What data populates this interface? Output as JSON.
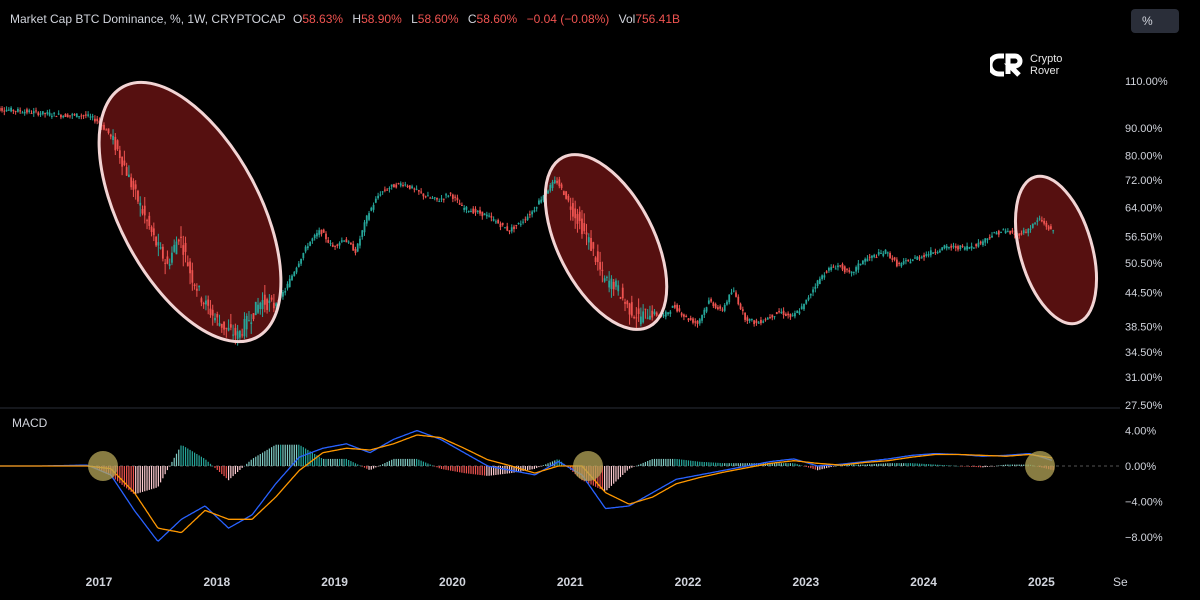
{
  "legend": {
    "title": "Market Cap BTC Dominance, %, 1W, CRYPTOCAP",
    "o_label": "O",
    "o_val": "58.63%",
    "h_label": "H",
    "h_val": "58.90%",
    "l_label": "L",
    "l_val": "58.60%",
    "c_label": "C",
    "c_val": "58.60%",
    "change": "−0.04 (−0.08%)",
    "vol_label": "Vol",
    "vol_val": "756.41B"
  },
  "scale_button": {
    "label": "%"
  },
  "brand": {
    "line1": "Crypto",
    "line2": "Rover"
  },
  "macd_panel": {
    "label": "MACD"
  },
  "colors": {
    "up": "#26a69a",
    "down": "#ef5350",
    "macd_line": "#2962ff",
    "signal_line": "#ff9800",
    "ellipse_fill": "#6b1414",
    "ellipse_stroke": "#f2d4d4",
    "circle_fill": "#b5a558"
  },
  "chart_data": [
    {
      "type": "candlestick",
      "title": "Market Cap BTC Dominance, %, 1W, CRYPTOCAP",
      "scale": "log",
      "price_axis_ticks": [
        "110.00%",
        "90.00%",
        "80.00%",
        "72.00%",
        "64.00%",
        "56.50%",
        "50.50%",
        "44.50%",
        "38.50%",
        "34.50%",
        "31.00%",
        "27.50%"
      ],
      "price_axis_values": [
        110,
        90,
        80,
        72,
        64,
        56.5,
        50.5,
        44.5,
        38.5,
        34.5,
        31,
        27.5
      ],
      "x_axis_ticks": [
        "2017",
        "2018",
        "2019",
        "2020",
        "2021",
        "2022",
        "2023",
        "2024",
        "2025",
        "Se"
      ],
      "x_axis_values": [
        2017,
        2018,
        2019,
        2020,
        2021,
        2022,
        2023,
        2024,
        2025,
        2025.67
      ],
      "x_range": [
        2016.1,
        2025.72
      ],
      "y_range": [
        27.0,
        125.0
      ],
      "series": [
        {
          "values_x": [
            2016.1,
            2016.3,
            2016.5,
            2016.7,
            2016.9,
            2017.0,
            2017.1,
            2017.2,
            2017.3,
            2017.4,
            2017.5,
            2017.6,
            2017.7,
            2017.8,
            2017.9,
            2018.0,
            2018.1,
            2018.2,
            2018.3,
            2018.4,
            2018.5,
            2018.6,
            2018.7,
            2018.8,
            2018.9,
            2019.0,
            2019.1,
            2019.2,
            2019.3,
            2019.4,
            2019.5,
            2019.6,
            2019.7,
            2019.8,
            2019.9,
            2020.0,
            2020.1,
            2020.2,
            2020.3,
            2020.4,
            2020.5,
            2020.6,
            2020.7,
            2020.8,
            2020.9,
            2021.0,
            2021.1,
            2021.2,
            2021.3,
            2021.4,
            2021.5,
            2021.6,
            2021.7,
            2021.8,
            2021.9,
            2022.0,
            2022.1,
            2022.2,
            2022.3,
            2022.4,
            2022.5,
            2022.6,
            2022.7,
            2022.8,
            2022.9,
            2023.0,
            2023.1,
            2023.2,
            2023.3,
            2023.4,
            2023.5,
            2023.6,
            2023.7,
            2023.8,
            2023.9,
            2024.0,
            2024.1,
            2024.2,
            2024.3,
            2024.4,
            2024.5,
            2024.6,
            2024.7,
            2024.8,
            2024.9,
            2025.0,
            2025.1
          ],
          "values_y": [
            98,
            97,
            96,
            95,
            95,
            93,
            88,
            80,
            70,
            62,
            55,
            50,
            57,
            48,
            43,
            40,
            38,
            37,
            40,
            43,
            42,
            45,
            50,
            55,
            58,
            54,
            56,
            53,
            62,
            68,
            70,
            71,
            69,
            67,
            66,
            68,
            64,
            63,
            62,
            60,
            58,
            60,
            63,
            68,
            72,
            66,
            60,
            54,
            47,
            46,
            42,
            40,
            41,
            40,
            42,
            40,
            39,
            43,
            41,
            45,
            40,
            39,
            40,
            41,
            40,
            42,
            46,
            49,
            50,
            48,
            51,
            52,
            53,
            50,
            51,
            52,
            53,
            54,
            54,
            54,
            55,
            57,
            58,
            57,
            58,
            61,
            58
          ]
        }
      ]
    },
    {
      "type": "line",
      "title": "MACD",
      "y_axis_ticks": [
        "4.00%",
        "0.00%",
        "−4.00%",
        "−8.00%"
      ],
      "y_axis_values": [
        4,
        0,
        -4,
        -8
      ],
      "y_range": [
        -9,
        5
      ],
      "x": [
        2016.1,
        2016.5,
        2016.9,
        2017.1,
        2017.3,
        2017.5,
        2017.7,
        2017.9,
        2018.1,
        2018.3,
        2018.5,
        2018.7,
        2018.9,
        2019.1,
        2019.3,
        2019.5,
        2019.7,
        2019.9,
        2020.1,
        2020.3,
        2020.5,
        2020.7,
        2020.9,
        2021.1,
        2021.3,
        2021.5,
        2021.7,
        2021.9,
        2022.1,
        2022.3,
        2022.5,
        2022.7,
        2022.9,
        2023.1,
        2023.3,
        2023.5,
        2023.7,
        2023.9,
        2024.1,
        2024.3,
        2024.5,
        2024.7,
        2024.9,
        2025.1
      ],
      "series": [
        {
          "name": "MACD",
          "values": [
            0,
            0,
            0.1,
            -1,
            -5,
            -8.5,
            -6,
            -4.5,
            -7,
            -5.5,
            -2,
            1,
            2,
            2.5,
            1.5,
            3,
            4,
            3,
            1.5,
            0,
            -0.5,
            -1,
            0.5,
            -1,
            -4.8,
            -4.5,
            -3,
            -1.5,
            -1,
            -0.5,
            0,
            0.5,
            0.8,
            0,
            0.2,
            0.5,
            0.8,
            1.2,
            1.4,
            1.3,
            1.1,
            1.2,
            1.4,
            0.6
          ]
        },
        {
          "name": "Signal",
          "values": [
            0,
            0,
            0,
            -0.3,
            -3,
            -7,
            -7.5,
            -5,
            -6,
            -6,
            -3.5,
            -0.5,
            1.5,
            2,
            1.8,
            2.5,
            3.5,
            3.2,
            2,
            0.7,
            0,
            -0.8,
            0,
            0,
            -3,
            -4.3,
            -3.5,
            -2,
            -1.3,
            -0.7,
            -0.2,
            0.3,
            0.6,
            0.3,
            0.1,
            0.4,
            0.6,
            1,
            1.3,
            1.3,
            1.2,
            1.1,
            1.3,
            0.9
          ]
        }
      ]
    }
  ]
}
